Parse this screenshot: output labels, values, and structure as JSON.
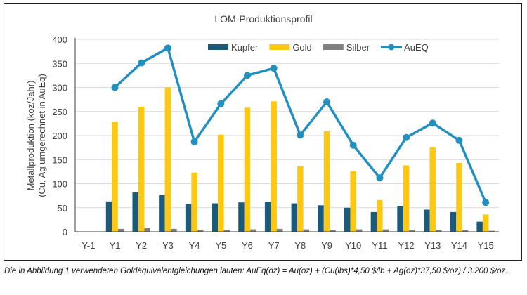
{
  "chart_data": {
    "type": "bar",
    "title": "LOM-Produktionsprofil",
    "ylabel": "Metallproduktion (koz/Jahr)\n(Cu, Ag umgerechnet in AuEq)",
    "ylabel_lines": [
      "Metallproduktion (koz/Jahr)",
      "(Cu, Ag umgerechnet in AuEq)"
    ],
    "xlabel": "",
    "ylim": [
      0,
      400
    ],
    "yticks": [
      0,
      50,
      100,
      150,
      200,
      250,
      300,
      350,
      400
    ],
    "grid": true,
    "legend_position": "top",
    "categories": [
      "Y-1",
      "Y1",
      "Y2",
      "Y3",
      "Y4",
      "Y5",
      "Y6",
      "Y7",
      "Y8",
      "Y9",
      "Y10",
      "Y11",
      "Y12",
      "Y13",
      "Y14",
      "Y15"
    ],
    "series": [
      {
        "name": "Kupfer",
        "kind": "bar",
        "color": "#1b5a7a",
        "values": [
          0,
          63,
          82,
          76,
          58,
          59,
          61,
          62,
          59,
          55,
          50,
          41,
          53,
          46,
          41,
          21
        ]
      },
      {
        "name": "Gold",
        "kind": "bar",
        "color": "#fdc80f",
        "values": [
          0,
          229,
          260,
          300,
          123,
          202,
          258,
          271,
          136,
          209,
          126,
          66,
          138,
          175,
          143,
          36
        ]
      },
      {
        "name": "Silber",
        "kind": "bar",
        "color": "#7f7f7f",
        "values": [
          0,
          6,
          8,
          6,
          4,
          4,
          5,
          6,
          5,
          4,
          5,
          5,
          4,
          3,
          4,
          2
        ]
      },
      {
        "name": "AuEQ",
        "kind": "line",
        "color": "#2190c0",
        "values": [
          null,
          300,
          351,
          382,
          187,
          266,
          325,
          340,
          201,
          270,
          180,
          112,
          196,
          226,
          190,
          61
        ]
      }
    ]
  },
  "caption": "Die in Abbildung 1 verwendeten Goldäquivalentgleichungen lauten: AuEq(oz) = Au(oz) + (Cu(lbs)*4,50 $/lb + Ag(oz)*37,50 $/oz) / 3.200 $/oz."
}
